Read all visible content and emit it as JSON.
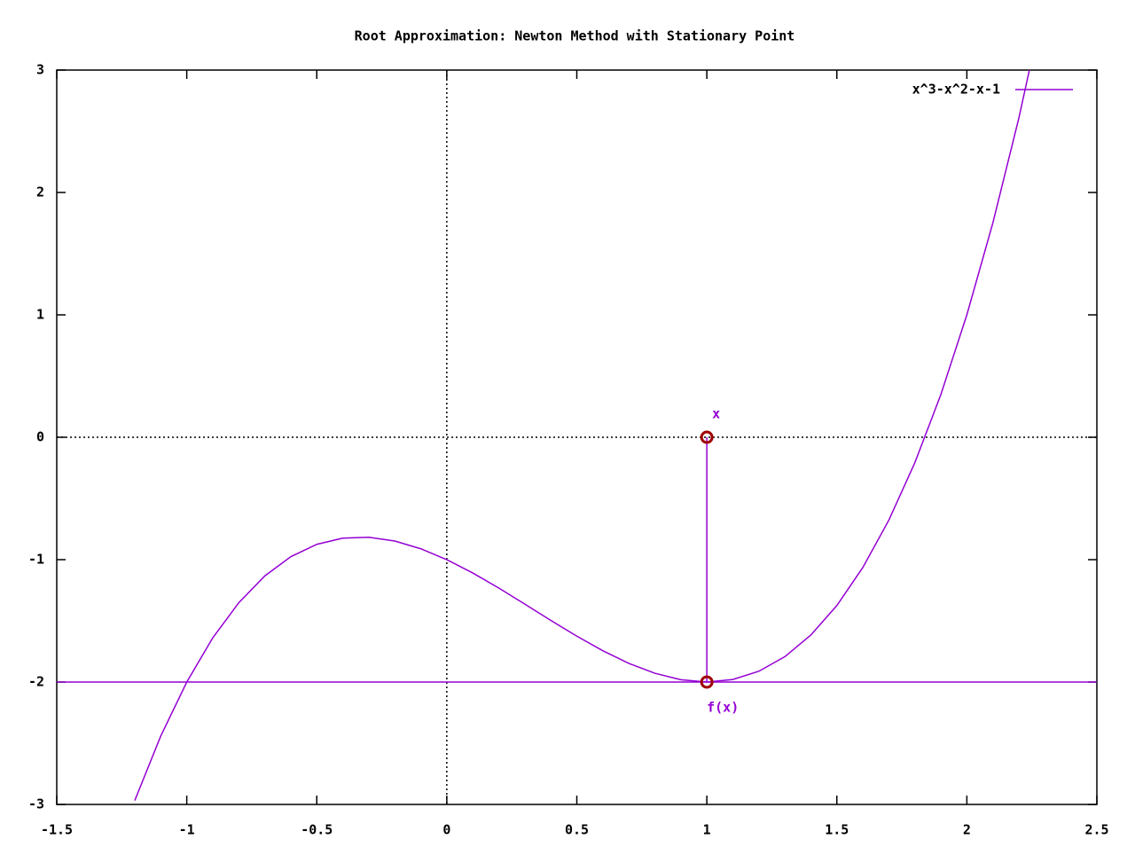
{
  "chart_data": {
    "type": "line",
    "title": "Root Approximation: Newton Method with Stationary Point",
    "x": [
      -1.2,
      -1.1,
      -1.0,
      -0.9,
      -0.8,
      -0.7,
      -0.6,
      -0.5,
      -0.4,
      -0.3,
      -0.2,
      -0.1,
      0,
      0.1,
      0.2,
      0.3,
      0.4,
      0.5,
      0.6,
      0.7,
      0.8,
      0.9,
      1.0,
      1.1,
      1.2,
      1.3,
      1.4,
      1.5,
      1.6,
      1.7,
      1.8,
      1.9,
      2.0,
      2.1,
      2.2,
      2.3
    ],
    "series": [
      {
        "name": "x^3-x^2-x-1",
        "color": "#9400d3",
        "values": [
          -2.968,
          -2.441,
          -2,
          -1.639,
          -1.352,
          -1.133,
          -0.976,
          -0.875,
          -0.824,
          -0.817,
          -0.848,
          -0.911,
          -1,
          -1.109,
          -1.232,
          -1.363,
          -1.496,
          -1.625,
          -1.744,
          -1.847,
          -1.928,
          -1.981,
          -2,
          -1.979,
          -1.912,
          -1.793,
          -1.616,
          -1.375,
          -1.064,
          -0.677,
          -0.208,
          0.349,
          1,
          1.751,
          2.608,
          3.577
        ]
      }
    ],
    "overlays": [
      {
        "x": [
          -1.5,
          2.5
        ],
        "values": [
          -2,
          -2
        ],
        "color": "#9400d3"
      },
      {
        "x": [
          1,
          1
        ],
        "values": [
          0,
          -2
        ],
        "color": "#9400d3"
      }
    ],
    "points": {
      "x": [
        1,
        1
      ],
      "values": [
        0,
        -2
      ],
      "color": "#a00000"
    },
    "annotations": [
      {
        "text": "x",
        "x": 1,
        "y": 0,
        "color": "#9400d3"
      },
      {
        "text": "f(x)",
        "x": 1,
        "y": -2,
        "color": "#9400d3"
      }
    ],
    "xlim": [
      -1.5,
      2.5
    ],
    "ylim": [
      -3,
      3
    ],
    "xticks": [
      -1.5,
      -1,
      -0.5,
      0,
      0.5,
      1,
      1.5,
      2,
      2.5
    ],
    "yticks": [
      -3,
      -2,
      -1,
      0,
      1,
      2,
      3
    ],
    "zeroaxis": true,
    "legend": "top-right"
  }
}
